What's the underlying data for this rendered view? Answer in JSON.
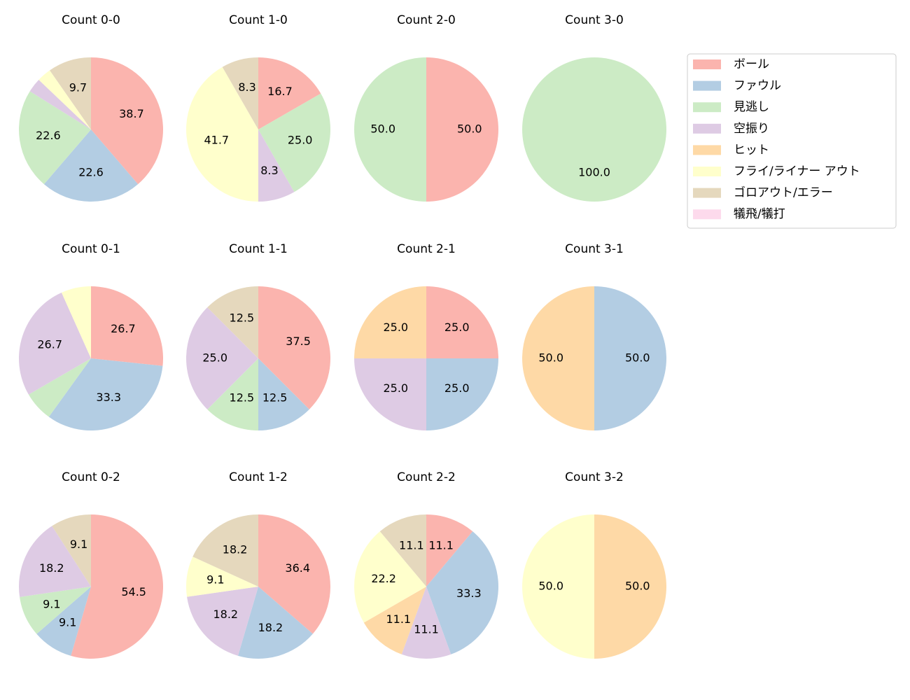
{
  "chart_data": [
    {
      "type": "pie",
      "title": "Count 0-0",
      "values": [
        38.7,
        22.6,
        22.6,
        3.2,
        0,
        3.2,
        9.7,
        0
      ],
      "value_labels": [
        "38.7",
        "22.6",
        "22.6",
        null,
        null,
        null,
        "9.7",
        null
      ]
    },
    {
      "type": "pie",
      "title": "Count 1-0",
      "values": [
        16.7,
        0,
        25.0,
        8.3,
        0,
        41.7,
        8.3,
        0
      ],
      "value_labels": [
        "16.7",
        null,
        "25.0",
        "8.3",
        null,
        "41.7",
        "8.3",
        null
      ]
    },
    {
      "type": "pie",
      "title": "Count 2-0",
      "values": [
        50.0,
        0,
        50.0,
        0,
        0,
        0,
        0,
        0
      ],
      "value_labels": [
        "50.0",
        null,
        "50.0",
        null,
        null,
        null,
        null,
        null
      ]
    },
    {
      "type": "pie",
      "title": "Count 3-0",
      "values": [
        0,
        0,
        100.0,
        0,
        0,
        0,
        0,
        0
      ],
      "value_labels": [
        null,
        null,
        "100.0",
        null,
        null,
        null,
        null,
        null
      ]
    },
    {
      "type": "pie",
      "title": "Count 0-1",
      "values": [
        26.7,
        33.3,
        6.7,
        26.7,
        0,
        6.7,
        0,
        0
      ],
      "value_labels": [
        "26.7",
        "33.3",
        null,
        "26.7",
        null,
        null,
        null,
        null
      ]
    },
    {
      "type": "pie",
      "title": "Count 1-1",
      "values": [
        37.5,
        12.5,
        12.5,
        25.0,
        0,
        0,
        12.5,
        0
      ],
      "value_labels": [
        "37.5",
        "12.5",
        "12.5",
        "25.0",
        null,
        null,
        "12.5",
        null
      ]
    },
    {
      "type": "pie",
      "title": "Count 2-1",
      "values": [
        25.0,
        25.0,
        0,
        25.0,
        25.0,
        0,
        0,
        0
      ],
      "value_labels": [
        "25.0",
        "25.0",
        null,
        "25.0",
        "25.0",
        null,
        null,
        null
      ]
    },
    {
      "type": "pie",
      "title": "Count 3-1",
      "values": [
        0,
        50.0,
        0,
        0,
        50.0,
        0,
        0,
        0
      ],
      "value_labels": [
        null,
        "50.0",
        null,
        null,
        "50.0",
        null,
        null,
        null
      ]
    },
    {
      "type": "pie",
      "title": "Count 0-2",
      "values": [
        54.5,
        9.1,
        9.1,
        18.2,
        0,
        0,
        9.1,
        0
      ],
      "value_labels": [
        "54.5",
        "9.1",
        "9.1",
        "18.2",
        null,
        null,
        "9.1",
        null
      ]
    },
    {
      "type": "pie",
      "title": "Count 1-2",
      "values": [
        36.4,
        18.2,
        0,
        18.2,
        0,
        9.1,
        18.2,
        0
      ],
      "value_labels": [
        "36.4",
        "18.2",
        null,
        "18.2",
        null,
        "9.1",
        "18.2",
        null
      ]
    },
    {
      "type": "pie",
      "title": "Count 2-2",
      "values": [
        11.1,
        33.3,
        0,
        11.1,
        11.1,
        22.2,
        11.1,
        0
      ],
      "value_labels": [
        "11.1",
        "33.3",
        null,
        "11.1",
        "11.1",
        "22.2",
        "11.1",
        null
      ]
    },
    {
      "type": "pie",
      "title": "Count 3-2",
      "values": [
        0,
        0,
        0,
        0,
        50.0,
        50.0,
        0,
        0
      ],
      "value_labels": [
        null,
        null,
        null,
        null,
        "50.0",
        "50.0",
        null,
        null
      ]
    }
  ],
  "legend": {
    "labels": [
      "ボール",
      "ファウル",
      "見逃し",
      "空振り",
      "ヒット",
      "フライ/ライナー アウト",
      "ゴロアウト/エラー",
      "犠飛/犠打"
    ],
    "colors": [
      "#fbb4ae",
      "#b3cde3",
      "#ccebc5",
      "#decbe4",
      "#fed9a6",
      "#ffffcc",
      "#e5d8bd",
      "#fddaec"
    ]
  }
}
